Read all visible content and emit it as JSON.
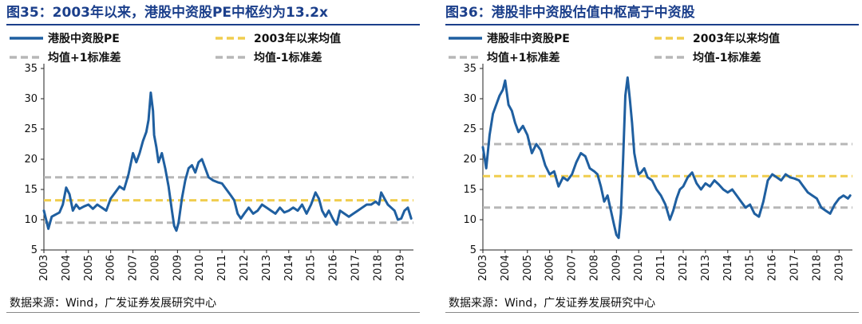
{
  "charts": [
    {
      "figure_title": "图35：2003年以来，港股中资股PE中枢约为13.2x",
      "source": "数据来源：Wind，广发证券发展研究中心"
    },
    {
      "figure_title": "图36：港股非中资股估值中枢高于中资股",
      "source": "数据来源：Wind，广发证券发展研究中心"
    }
  ],
  "colors": {
    "series": "#1f5fa0",
    "mean": "#f0cd4e",
    "band": "#b7b7b7",
    "title": "#1b3f8b"
  },
  "chart_data": [
    {
      "type": "line",
      "title": "图35：2003年以来，港股中资股PE中枢约为13.2x",
      "xlabel": "",
      "ylabel": "",
      "ylim": [
        5,
        35
      ],
      "yticks": [
        5,
        10,
        15,
        20,
        25,
        30,
        35
      ],
      "xlim": [
        2003,
        2019.6
      ],
      "xticks": [
        "2003",
        "2004",
        "2005",
        "2006",
        "2007",
        "2008",
        "2009",
        "2010",
        "2011",
        "2012",
        "2013",
        "2014",
        "2015",
        "2016",
        "2017",
        "2018",
        "2019"
      ],
      "grid": false,
      "legend": "top",
      "legend_entries": [
        "港股中资股PE",
        "2003年以来均值",
        "均值+1标准差",
        "均值-1标准差"
      ],
      "series": [
        {
          "name": "港股中资股PE",
          "x": [
            2003.0,
            2003.2,
            2003.35,
            2003.5,
            2003.7,
            2003.85,
            2004.0,
            2004.15,
            2004.3,
            2004.45,
            2004.6,
            2004.8,
            2005.0,
            2005.2,
            2005.4,
            2005.6,
            2005.8,
            2006.0,
            2006.2,
            2006.4,
            2006.6,
            2006.8,
            2007.0,
            2007.15,
            2007.3,
            2007.45,
            2007.6,
            2007.7,
            2007.8,
            2007.9,
            2007.95,
            2008.05,
            2008.15,
            2008.3,
            2008.45,
            2008.6,
            2008.75,
            2008.85,
            2008.95,
            2009.05,
            2009.2,
            2009.35,
            2009.5,
            2009.65,
            2009.8,
            2009.95,
            2010.1,
            2010.25,
            2010.4,
            2010.6,
            2010.8,
            2011.0,
            2011.2,
            2011.4,
            2011.55,
            2011.7,
            2011.85,
            2012.0,
            2012.2,
            2012.4,
            2012.6,
            2012.8,
            2013.0,
            2013.2,
            2013.4,
            2013.6,
            2013.8,
            2014.0,
            2014.2,
            2014.4,
            2014.6,
            2014.8,
            2015.0,
            2015.2,
            2015.35,
            2015.5,
            2015.65,
            2015.8,
            2016.0,
            2016.15,
            2016.3,
            2016.5,
            2016.7,
            2016.9,
            2017.1,
            2017.3,
            2017.5,
            2017.7,
            2017.9,
            2018.05,
            2018.15,
            2018.3,
            2018.45,
            2018.6,
            2018.75,
            2018.9,
            2019.05,
            2019.2,
            2019.35,
            2019.5
          ],
          "y": [
            11.5,
            8.5,
            10.5,
            10.8,
            11.2,
            12.5,
            15.3,
            14.2,
            11.5,
            12.5,
            11.8,
            12.2,
            12.5,
            11.8,
            12.5,
            12.0,
            11.5,
            13.5,
            14.5,
            15.5,
            15.0,
            17.5,
            21.0,
            19.5,
            21.0,
            23.0,
            24.5,
            26.5,
            31.0,
            28.0,
            24.0,
            22.0,
            19.5,
            21.0,
            18.5,
            15.5,
            11.5,
            9.0,
            8.2,
            9.5,
            13.5,
            16.5,
            18.5,
            19.0,
            17.8,
            19.5,
            20.0,
            18.5,
            17.0,
            16.5,
            16.2,
            16.0,
            15.0,
            14.0,
            13.2,
            11.0,
            10.2,
            11.0,
            12.0,
            11.0,
            11.5,
            12.5,
            12.0,
            11.5,
            11.0,
            12.0,
            11.2,
            11.5,
            12.0,
            11.5,
            12.5,
            11.0,
            12.5,
            14.5,
            13.5,
            11.5,
            10.5,
            11.5,
            10.0,
            9.2,
            11.5,
            11.0,
            10.5,
            11.0,
            11.5,
            12.0,
            12.5,
            12.5,
            13.0,
            12.5,
            14.5,
            13.5,
            12.5,
            12.0,
            11.5,
            10.0,
            10.2,
            11.5,
            12.0,
            10.2
          ]
        },
        {
          "name": "2003年以来均值",
          "value": 13.2
        },
        {
          "name": "均值+1标准差",
          "value": 17.0
        },
        {
          "name": "均值-1标准差",
          "value": 9.5
        }
      ]
    },
    {
      "type": "line",
      "title": "图36：港股非中资股估值中枢高于中资股",
      "xlabel": "",
      "ylabel": "",
      "ylim": [
        5,
        35
      ],
      "yticks": [
        5,
        10,
        15,
        20,
        25,
        30,
        35
      ],
      "xlim": [
        2003,
        2019.6
      ],
      "xticks": [
        "2003",
        "2004",
        "2005",
        "2006",
        "2007",
        "2008",
        "2009",
        "2010",
        "2011",
        "2012",
        "2013",
        "2014",
        "2015",
        "2016",
        "2017",
        "2018",
        "2019"
      ],
      "grid": false,
      "legend": "top",
      "legend_entries": [
        "港股非中资股PE",
        "2003年以来均值",
        "均值+1标准差",
        "均值-1标准差"
      ],
      "series": [
        {
          "name": "港股非中资股PE",
          "x": [
            2003.0,
            2003.15,
            2003.3,
            2003.45,
            2003.6,
            2003.75,
            2003.9,
            2004.0,
            2004.15,
            2004.3,
            2004.45,
            2004.6,
            2004.8,
            2005.0,
            2005.2,
            2005.4,
            2005.6,
            2005.8,
            2006.0,
            2006.2,
            2006.4,
            2006.6,
            2006.8,
            2007.0,
            2007.2,
            2007.4,
            2007.6,
            2007.8,
            2008.0,
            2008.15,
            2008.3,
            2008.45,
            2008.6,
            2008.75,
            2008.9,
            2009.0,
            2009.1,
            2009.2,
            2009.3,
            2009.4,
            2009.5,
            2009.6,
            2009.7,
            2009.8,
            2009.9,
            2010.0,
            2010.1,
            2010.25,
            2010.4,
            2010.6,
            2010.8,
            2011.0,
            2011.2,
            2011.4,
            2011.55,
            2011.7,
            2011.85,
            2012.0,
            2012.2,
            2012.4,
            2012.6,
            2012.8,
            2013.0,
            2013.2,
            2013.4,
            2013.6,
            2013.8,
            2014.0,
            2014.2,
            2014.4,
            2014.6,
            2014.8,
            2015.0,
            2015.2,
            2015.4,
            2015.6,
            2015.8,
            2016.0,
            2016.2,
            2016.4,
            2016.6,
            2016.8,
            2017.0,
            2017.2,
            2017.4,
            2017.6,
            2017.8,
            2018.0,
            2018.2,
            2018.4,
            2018.6,
            2018.8,
            2019.0,
            2019.2,
            2019.4,
            2019.5
          ],
          "y": [
            22.0,
            18.5,
            24.0,
            27.5,
            29.0,
            30.5,
            31.5,
            33.0,
            29.0,
            28.0,
            26.0,
            24.5,
            25.5,
            24.0,
            21.0,
            22.5,
            21.5,
            19.0,
            17.5,
            18.0,
            15.5,
            17.0,
            16.5,
            17.5,
            19.5,
            21.0,
            20.5,
            18.5,
            18.0,
            17.5,
            15.5,
            13.0,
            14.0,
            11.5,
            9.0,
            7.5,
            7.0,
            11.0,
            20.0,
            30.5,
            33.5,
            30.0,
            26.0,
            21.0,
            19.0,
            17.5,
            17.8,
            18.5,
            17.0,
            16.5,
            15.0,
            14.0,
            12.5,
            10.0,
            11.5,
            13.5,
            15.0,
            15.5,
            17.0,
            17.8,
            16.0,
            15.0,
            16.0,
            15.5,
            16.5,
            15.8,
            15.0,
            14.5,
            15.0,
            14.0,
            13.0,
            12.0,
            12.5,
            11.0,
            10.5,
            13.0,
            16.5,
            17.5,
            17.0,
            16.5,
            17.5,
            17.0,
            16.8,
            16.5,
            15.5,
            14.5,
            14.0,
            13.5,
            12.0,
            11.5,
            11.0,
            12.5,
            13.5,
            14.0,
            13.5,
            14.0
          ]
        },
        {
          "name": "2003年以来均值",
          "value": 17.2
        },
        {
          "name": "均值+1标准差",
          "value": 22.5
        },
        {
          "name": "均值-1标准差",
          "value": 12.0
        }
      ]
    }
  ]
}
